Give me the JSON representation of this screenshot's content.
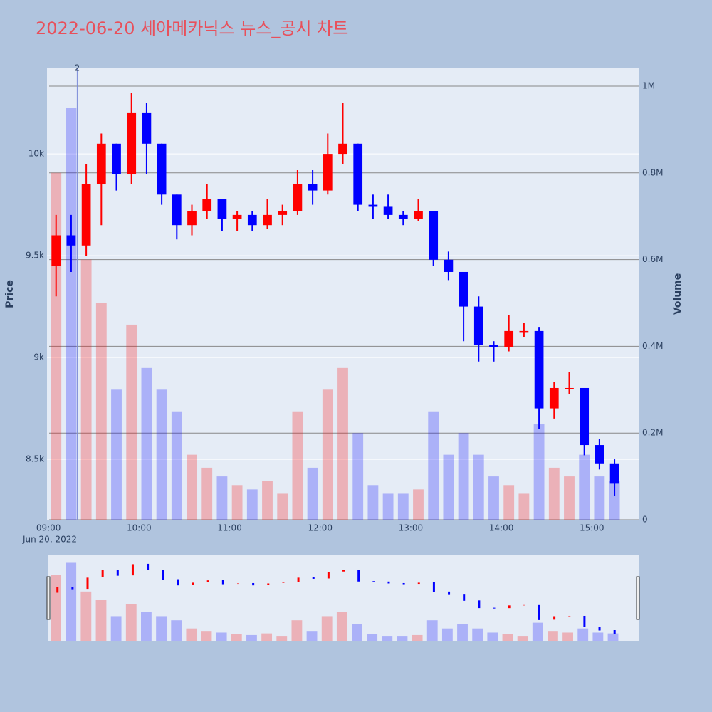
{
  "chart_data": {
    "type": "candlestick",
    "title": "2022-06-20 세아메카닉스 뉴스_공시 차트",
    "y_title": "Price",
    "y2_title": "Volume",
    "x_date_label": "Jun 20, 2022",
    "annotation": {
      "x": "09:19",
      "text": "2"
    },
    "increasing_color": "#ff0000",
    "decreasing_color": "#0000ff",
    "x": [
      "09:00",
      "09:10",
      "09:20",
      "09:30",
      "09:40",
      "09:50",
      "10:00",
      "10:10",
      "10:20",
      "10:30",
      "10:40",
      "10:50",
      "11:00",
      "11:10",
      "11:20",
      "11:30",
      "11:40",
      "11:50",
      "12:00",
      "12:10",
      "12:20",
      "12:30",
      "12:40",
      "12:50",
      "13:00",
      "13:10",
      "13:20",
      "13:30",
      "13:40",
      "13:50",
      "14:00",
      "14:10",
      "14:20",
      "14:30",
      "14:40",
      "14:50",
      "15:00",
      "15:10"
    ],
    "open": [
      9450,
      9600,
      9550,
      9850,
      10050,
      9900,
      10200,
      10050,
      9800,
      9650,
      9720,
      9780,
      9680,
      9700,
      9650,
      9700,
      9720,
      9850,
      9820,
      10000,
      10050,
      9750,
      9740,
      9700,
      9680,
      9720,
      9480,
      9420,
      9250,
      9060,
      9050,
      9130,
      9130,
      8750,
      8850,
      8850,
      8570,
      8480
    ],
    "high": [
      9700,
      9700,
      9950,
      10100,
      10050,
      10300,
      10250,
      10050,
      9800,
      9750,
      9850,
      9780,
      9720,
      9720,
      9780,
      9750,
      9920,
      9920,
      10100,
      10250,
      10050,
      9800,
      9800,
      9720,
      9780,
      9720,
      9520,
      9420,
      9300,
      9080,
      9210,
      9170,
      9150,
      8880,
      8930,
      8850,
      8600,
      8500
    ],
    "low": [
      9300,
      9420,
      9500,
      9650,
      9820,
      9850,
      9900,
      9750,
      9580,
      9600,
      9680,
      9620,
      9620,
      9620,
      9630,
      9650,
      9700,
      9750,
      9800,
      9950,
      9720,
      9680,
      9680,
      9650,
      9670,
      9450,
      9380,
      9080,
      8980,
      8980,
      9030,
      9100,
      8650,
      8700,
      8820,
      8520,
      8450,
      8320
    ],
    "close": [
      9600,
      9550,
      9850,
      10050,
      9900,
      10200,
      10050,
      9800,
      9650,
      9720,
      9780,
      9680,
      9700,
      9650,
      9700,
      9720,
      9850,
      9820,
      10000,
      10050,
      9750,
      9740,
      9700,
      9680,
      9720,
      9480,
      9420,
      9250,
      9060,
      9050,
      9130,
      9130,
      8750,
      8850,
      8850,
      8570,
      8480,
      8380
    ],
    "volume": [
      800000,
      950000,
      600000,
      500000,
      300000,
      450000,
      350000,
      300000,
      250000,
      150000,
      120000,
      100000,
      80000,
      70000,
      90000,
      60000,
      250000,
      120000,
      300000,
      350000,
      200000,
      80000,
      60000,
      60000,
      70000,
      250000,
      150000,
      200000,
      150000,
      100000,
      80000,
      60000,
      220000,
      120000,
      100000,
      150000,
      100000,
      90000
    ],
    "xlim": [
      "08:59",
      "15:31"
    ],
    "xticks": [
      "09:00",
      "10:00",
      "11:00",
      "12:00",
      "13:00",
      "14:00",
      "15:00"
    ],
    "ylim": [
      8203,
      10420
    ],
    "yticks": [
      {
        "value": 8500,
        "label": "8.5k"
      },
      {
        "value": 9000,
        "label": "9k"
      },
      {
        "value": 9500,
        "label": "9.5k"
      },
      {
        "value": 10000,
        "label": "10k"
      }
    ],
    "y2lim": [
      0,
      1041000
    ],
    "y2ticks": [
      0,
      {
        "value": 200000,
        "label": "0.2M"
      },
      {
        "value": 400000,
        "label": "0.4M"
      },
      {
        "value": 600000,
        "label": "0.6M"
      },
      {
        "value": 800000,
        "label": "0.8M"
      },
      {
        "value": 1000000,
        "label": "1M"
      }
    ],
    "grid": true
  }
}
